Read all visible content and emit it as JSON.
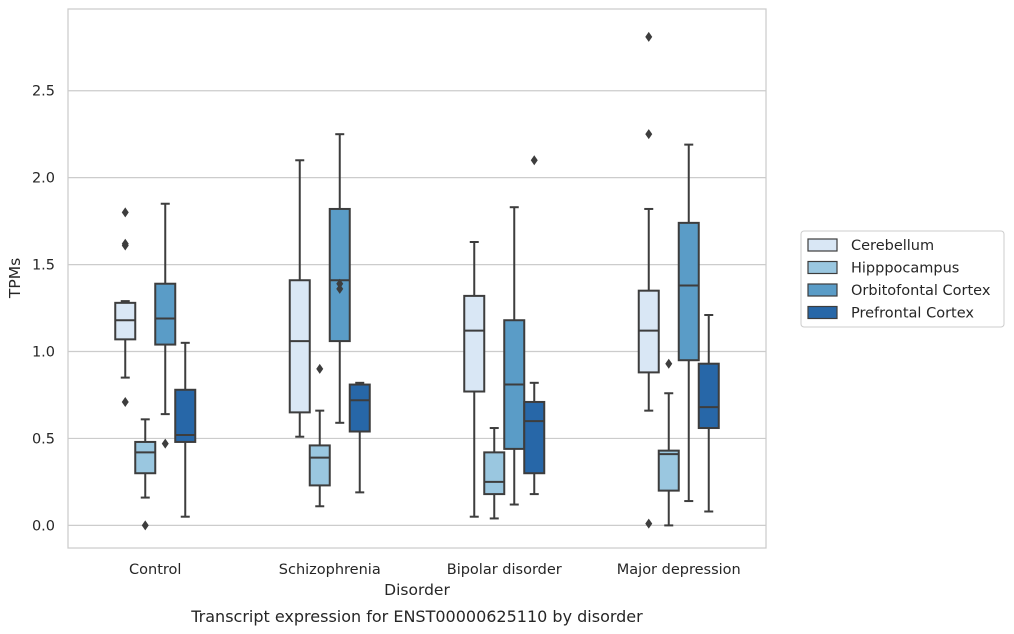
{
  "chart_data": {
    "type": "box",
    "xlabel": "Disorder",
    "ylabel": "TPMs",
    "caption": "Transcript expression for ENST00000625110 by disorder",
    "categories": [
      "Control",
      "Schizophrenia",
      "Bipolar disorder",
      "Major depression"
    ],
    "ylim": [
      -0.13,
      2.97
    ],
    "yticks": [
      0.0,
      0.5,
      1.0,
      1.5,
      2.0,
      2.5
    ],
    "ytick_labels": [
      "0.0",
      "0.5",
      "1.0",
      "1.5",
      "2.0",
      "2.5"
    ],
    "grid": "horizontal",
    "legend_position": "right",
    "series": [
      {
        "name": "Cerebellum",
        "color": "#d9e7f5",
        "boxes": [
          {
            "whislo": 0.85,
            "q1": 1.07,
            "med": 1.18,
            "q3": 1.28,
            "whishi": 1.29,
            "fliers": [
              0.71,
              1.62,
              1.61,
              1.8
            ]
          },
          {
            "whislo": 0.51,
            "q1": 0.65,
            "med": 1.06,
            "q3": 1.41,
            "whishi": 2.1,
            "fliers": []
          },
          {
            "whislo": 0.05,
            "q1": 0.77,
            "med": 1.12,
            "q3": 1.32,
            "whishi": 1.63,
            "fliers": []
          },
          {
            "whislo": 0.66,
            "q1": 0.88,
            "med": 1.12,
            "q3": 1.35,
            "whishi": 1.82,
            "fliers": [
              0.01,
              2.25,
              2.81
            ]
          }
        ]
      },
      {
        "name": "Hipppocampus",
        "color": "#9ac7e0",
        "boxes": [
          {
            "whislo": 0.16,
            "q1": 0.3,
            "med": 0.42,
            "q3": 0.48,
            "whishi": 0.61,
            "fliers": [
              0.0
            ]
          },
          {
            "whislo": 0.11,
            "q1": 0.23,
            "med": 0.39,
            "q3": 0.46,
            "whishi": 0.66,
            "fliers": [
              0.9
            ]
          },
          {
            "whislo": 0.04,
            "q1": 0.18,
            "med": 0.25,
            "q3": 0.42,
            "whishi": 0.56,
            "fliers": []
          },
          {
            "whislo": 0.0,
            "q1": 0.2,
            "med": 0.41,
            "q3": 0.43,
            "whishi": 0.76,
            "fliers": [
              0.93
            ]
          }
        ]
      },
      {
        "name": "Orbitofontal Cortex",
        "color": "#5a9cc7",
        "boxes": [
          {
            "whislo": 0.64,
            "q1": 1.04,
            "med": 1.19,
            "q3": 1.39,
            "whishi": 1.85,
            "fliers": [
              0.47
            ]
          },
          {
            "whislo": 0.59,
            "q1": 1.06,
            "med": 1.41,
            "q3": 1.82,
            "whishi": 2.25,
            "fliers": [
              1.36,
              1.39
            ]
          },
          {
            "whislo": 0.12,
            "q1": 0.44,
            "med": 0.81,
            "q3": 1.18,
            "whishi": 1.83,
            "fliers": []
          },
          {
            "whislo": 0.14,
            "q1": 0.95,
            "med": 1.38,
            "q3": 1.74,
            "whishi": 2.19,
            "fliers": []
          }
        ]
      },
      {
        "name": "Prefrontal Cortex",
        "color": "#2767a8",
        "boxes": [
          {
            "whislo": 0.05,
            "q1": 0.48,
            "med": 0.52,
            "q3": 0.78,
            "whishi": 1.05,
            "fliers": []
          },
          {
            "whislo": 0.19,
            "q1": 0.54,
            "med": 0.72,
            "q3": 0.81,
            "whishi": 0.82,
            "fliers": []
          },
          {
            "whislo": 0.18,
            "q1": 0.3,
            "med": 0.6,
            "q3": 0.71,
            "whishi": 0.82,
            "fliers": [
              2.1
            ]
          },
          {
            "whislo": 0.08,
            "q1": 0.56,
            "med": 0.68,
            "q3": 0.93,
            "whishi": 1.21,
            "fliers": []
          }
        ]
      }
    ]
  }
}
